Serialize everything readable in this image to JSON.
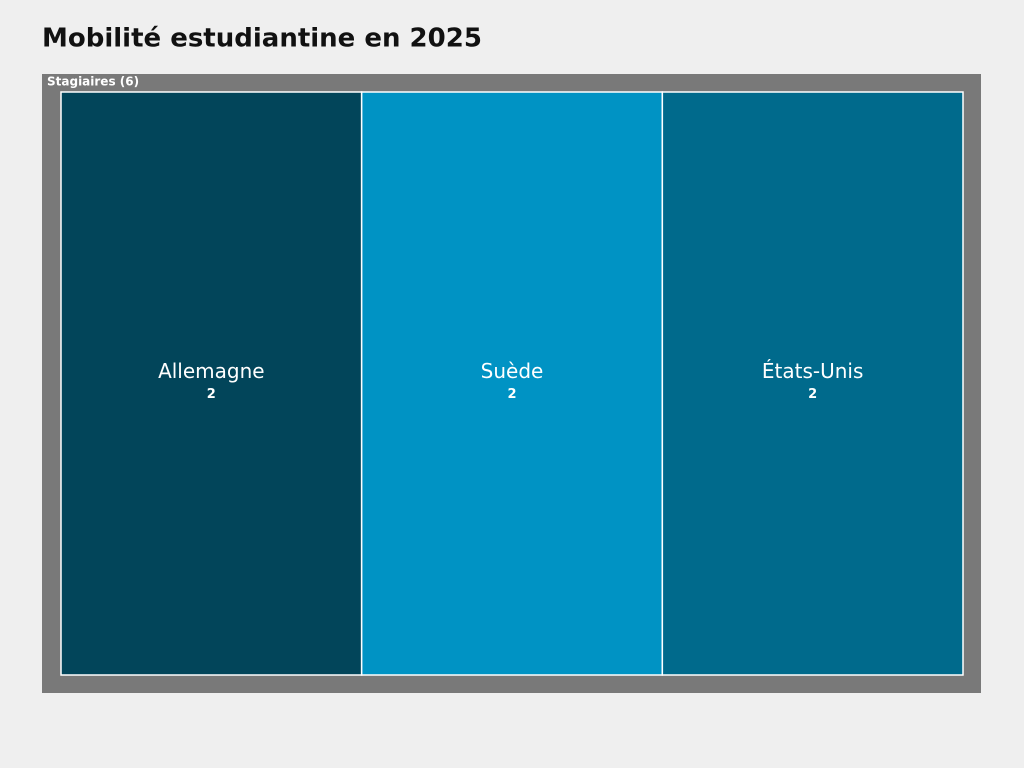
{
  "chart_data": {
    "type": "treemap",
    "title": "Mobilité estudiantine en 2025",
    "group": "Stagiaires (6)",
    "categories": [
      "Allemagne",
      "Suède",
      "États-Unis"
    ],
    "values": [
      2,
      2,
      2
    ],
    "colors": [
      "#02455a",
      "#0093c4",
      "#006a8c"
    ],
    "group_color": "#797979"
  }
}
